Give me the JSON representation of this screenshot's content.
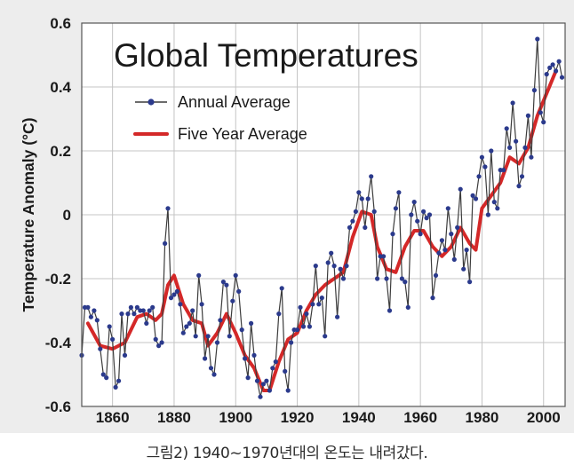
{
  "caption": "그림2) 1940~1970년대의 온도는 내려갔다.",
  "chart_data": {
    "type": "line",
    "title": "Global Temperatures",
    "xlabel": "",
    "ylabel": "Temperature Anomaly (°C)",
    "xlim": [
      1850,
      2007
    ],
    "ylim": [
      -0.6,
      0.6
    ],
    "x_ticks": [
      "1860",
      "1880",
      "1900",
      "1920",
      "1940",
      "1960",
      "1980",
      "2000"
    ],
    "y_ticks": [
      "0.6",
      "0.4",
      "0.2",
      "0",
      "-0.2",
      "-0.4",
      "-0.6"
    ],
    "grid": true,
    "legend_position": "top-left",
    "colors": {
      "plot_background": "#ffffff",
      "grid": "#c4c4c4",
      "annual_line": "#3c3c3c",
      "annual_marker": "#2b3a8c",
      "five_year": "#d42828"
    },
    "series": [
      {
        "name": "Annual Average",
        "style": "line-with-markers",
        "x": [
          1850,
          1851,
          1852,
          1853,
          1854,
          1855,
          1856,
          1857,
          1858,
          1859,
          1860,
          1861,
          1862,
          1863,
          1864,
          1865,
          1866,
          1867,
          1868,
          1869,
          1870,
          1871,
          1872,
          1873,
          1874,
          1875,
          1876,
          1877,
          1878,
          1879,
          1880,
          1881,
          1882,
          1883,
          1884,
          1885,
          1886,
          1887,
          1888,
          1889,
          1890,
          1891,
          1892,
          1893,
          1894,
          1895,
          1896,
          1897,
          1898,
          1899,
          1900,
          1901,
          1902,
          1903,
          1904,
          1905,
          1906,
          1907,
          1908,
          1909,
          1910,
          1911,
          1912,
          1913,
          1914,
          1915,
          1916,
          1917,
          1918,
          1919,
          1920,
          1921,
          1922,
          1923,
          1924,
          1925,
          1926,
          1927,
          1928,
          1929,
          1930,
          1931,
          1932,
          1933,
          1934,
          1935,
          1936,
          1937,
          1938,
          1939,
          1940,
          1941,
          1942,
          1943,
          1944,
          1945,
          1946,
          1947,
          1948,
          1949,
          1950,
          1951,
          1952,
          1953,
          1954,
          1955,
          1956,
          1957,
          1958,
          1959,
          1960,
          1961,
          1962,
          1963,
          1964,
          1965,
          1966,
          1967,
          1968,
          1969,
          1970,
          1971,
          1972,
          1973,
          1974,
          1975,
          1976,
          1977,
          1978,
          1979,
          1980,
          1981,
          1982,
          1983,
          1984,
          1985,
          1986,
          1987,
          1988,
          1989,
          1990,
          1991,
          1992,
          1993,
          1994,
          1995,
          1996,
          1997,
          1998,
          1999,
          2000,
          2001,
          2002,
          2003,
          2004,
          2005,
          2006
        ],
        "y": [
          -0.44,
          -0.29,
          -0.29,
          -0.32,
          -0.3,
          -0.33,
          -0.42,
          -0.5,
          -0.51,
          -0.35,
          -0.39,
          -0.54,
          -0.52,
          -0.31,
          -0.44,
          -0.31,
          -0.29,
          -0.31,
          -0.29,
          -0.3,
          -0.3,
          -0.34,
          -0.3,
          -0.29,
          -0.39,
          -0.41,
          -0.4,
          -0.09,
          0.02,
          -0.26,
          -0.25,
          -0.24,
          -0.28,
          -0.37,
          -0.35,
          -0.34,
          -0.3,
          -0.38,
          -0.19,
          -0.28,
          -0.45,
          -0.38,
          -0.48,
          -0.5,
          -0.4,
          -0.33,
          -0.21,
          -0.22,
          -0.38,
          -0.27,
          -0.19,
          -0.24,
          -0.36,
          -0.45,
          -0.51,
          -0.34,
          -0.44,
          -0.52,
          -0.57,
          -0.53,
          -0.52,
          -0.55,
          -0.48,
          -0.46,
          -0.31,
          -0.23,
          -0.49,
          -0.55,
          -0.4,
          -0.36,
          -0.36,
          -0.29,
          -0.35,
          -0.31,
          -0.35,
          -0.28,
          -0.16,
          -0.28,
          -0.26,
          -0.38,
          -0.15,
          -0.12,
          -0.16,
          -0.32,
          -0.17,
          -0.2,
          -0.16,
          -0.04,
          -0.02,
          0.01,
          0.07,
          0.05,
          -0.04,
          0.05,
          0.12,
          0.01,
          -0.2,
          -0.13,
          -0.13,
          -0.2,
          -0.3,
          -0.06,
          0.02,
          0.07,
          -0.2,
          -0.21,
          -0.29,
          0.0,
          0.04,
          -0.02,
          -0.06,
          0.01,
          -0.01,
          0.0,
          -0.26,
          -0.19,
          -0.12,
          -0.08,
          -0.11,
          0.02,
          -0.06,
          -0.14,
          -0.04,
          0.08,
          -0.17,
          -0.11,
          -0.21,
          0.06,
          0.05,
          0.12,
          0.18,
          0.15,
          0.0,
          0.2,
          0.04,
          0.02,
          0.14,
          0.14,
          0.27,
          0.21,
          0.35,
          0.23,
          0.09,
          0.12,
          0.21,
          0.31,
          0.18,
          0.39,
          0.55,
          0.32,
          0.29,
          0.44,
          0.46,
          0.47,
          0.45,
          0.48,
          0.43
        ]
      },
      {
        "name": "Five Year Average",
        "style": "line",
        "x": [
          1852,
          1856,
          1860,
          1864,
          1868,
          1871,
          1874,
          1876,
          1878,
          1880,
          1883,
          1886,
          1889,
          1891,
          1894,
          1897,
          1900,
          1903,
          1906,
          1909,
          1911,
          1914,
          1917,
          1920,
          1923,
          1926,
          1929,
          1932,
          1935,
          1938,
          1941,
          1944,
          1946,
          1949,
          1952,
          1955,
          1958,
          1961,
          1964,
          1967,
          1970,
          1973,
          1976,
          1978,
          1980,
          1983,
          1986,
          1989,
          1992,
          1995,
          1998,
          2001,
          2004
        ],
        "y": [
          -0.34,
          -0.41,
          -0.42,
          -0.4,
          -0.32,
          -0.31,
          -0.33,
          -0.31,
          -0.22,
          -0.19,
          -0.28,
          -0.33,
          -0.34,
          -0.41,
          -0.37,
          -0.31,
          -0.37,
          -0.44,
          -0.48,
          -0.55,
          -0.55,
          -0.46,
          -0.39,
          -0.37,
          -0.3,
          -0.25,
          -0.22,
          -0.2,
          -0.18,
          -0.07,
          0.01,
          0.0,
          -0.1,
          -0.17,
          -0.18,
          -0.1,
          -0.05,
          -0.05,
          -0.1,
          -0.13,
          -0.1,
          -0.04,
          -0.09,
          -0.11,
          0.02,
          0.06,
          0.1,
          0.18,
          0.16,
          0.21,
          0.31,
          0.38,
          0.45
        ]
      }
    ]
  }
}
